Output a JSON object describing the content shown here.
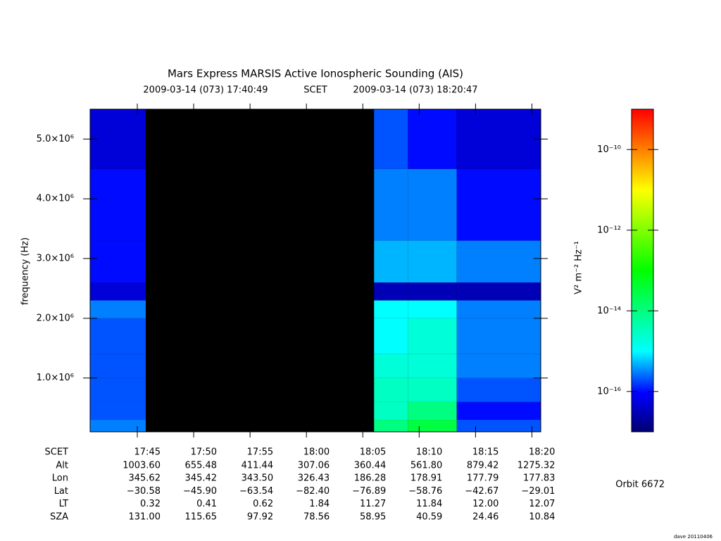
{
  "chart_data": {
    "type": "spectrogram",
    "title": "Mars Express MARSIS Active Ionospheric Sounding (AIS)",
    "subtitle": {
      "start": "2009-03-14 (073) 17:40:49",
      "label": "SCET",
      "end": "2009-03-14 (073) 18:20:47"
    },
    "y_label": "frequency (Hz)",
    "ylim": [
      100000,
      5500000
    ],
    "yticks": [
      {
        "value": 1000000,
        "label": "1.0×10⁶"
      },
      {
        "value": 2000000,
        "label": "2.0×10⁶"
      },
      {
        "value": 3000000,
        "label": "3.0×10⁶"
      },
      {
        "value": 4000000,
        "label": "4.0×10⁶"
      },
      {
        "value": 5000000,
        "label": "5.0×10⁶"
      }
    ],
    "xticks": [
      "17:45",
      "17:50",
      "17:55",
      "18:00",
      "18:05",
      "18:10",
      "18:15",
      "18:20"
    ],
    "time_bins": [
      "17:40:49",
      "17:45:45",
      "18:06:00",
      "18:09:00",
      "18:13:20",
      "18:20:47"
    ],
    "freq_bins": [
      100000,
      300000,
      600000,
      1000000,
      1400000,
      2000000,
      2300000,
      2600000,
      3300000,
      4500000,
      5500000
    ],
    "z": [
      [
        3e-16,
        null,
        1e-14,
        3e-14,
        2e-16
      ],
      [
        2e-16,
        null,
        3e-15,
        1e-14,
        1e-16
      ],
      [
        2e-16,
        null,
        3e-15,
        3e-15,
        2e-16
      ],
      [
        2e-16,
        null,
        2e-15,
        2e-15,
        3e-16
      ],
      [
        2e-16,
        null,
        1e-15,
        2e-15,
        3e-16
      ],
      [
        3e-16,
        null,
        1e-15,
        1e-15,
        3e-16
      ],
      [
        5e-17,
        null,
        3e-17,
        3e-17,
        3e-17
      ],
      [
        1e-16,
        null,
        5e-16,
        5e-16,
        3e-16
      ],
      [
        1e-16,
        null,
        3e-16,
        3e-16,
        1e-16
      ],
      [
        5e-17,
        null,
        2e-16,
        1e-16,
        5e-17
      ]
    ],
    "colorbar": {
      "log_scale": true,
      "label": "V² m⁻² Hz⁻¹",
      "lim": [
        1e-17,
        1e-09
      ],
      "ticks": [
        {
          "value": 1e-16,
          "label": "10⁻¹⁶"
        },
        {
          "value": 1e-14,
          "label": "10⁻¹⁴"
        },
        {
          "value": 1e-12,
          "label": "10⁻¹²"
        },
        {
          "value": 1e-10,
          "label": "10⁻¹⁰"
        }
      ]
    },
    "ephemeris": {
      "time_label": "SCET",
      "rows": [
        {
          "name": "Alt",
          "values": [
            "1003.60",
            "655.48",
            "411.44",
            "307.06",
            "360.44",
            "561.80",
            "879.42",
            "1275.32"
          ]
        },
        {
          "name": "Lon",
          "values": [
            "345.62",
            "345.42",
            "343.50",
            "326.43",
            "186.28",
            "178.91",
            "177.79",
            "177.83"
          ]
        },
        {
          "name": "Lat",
          "values": [
            "−30.58",
            "−45.90",
            "−63.54",
            "−82.40",
            "−76.89",
            "−58.76",
            "−42.67",
            "−29.01"
          ]
        },
        {
          "name": "LT",
          "values": [
            "0.32",
            "0.41",
            "0.62",
            "1.84",
            "11.27",
            "11.84",
            "12.00",
            "12.07"
          ]
        },
        {
          "name": "SZA",
          "values": [
            "131.00",
            "115.65",
            "97.92",
            "78.56",
            "58.95",
            "40.59",
            "24.46",
            "10.84"
          ]
        }
      ]
    },
    "orbit": "Orbit 6672",
    "credit": "dave 20110406"
  }
}
